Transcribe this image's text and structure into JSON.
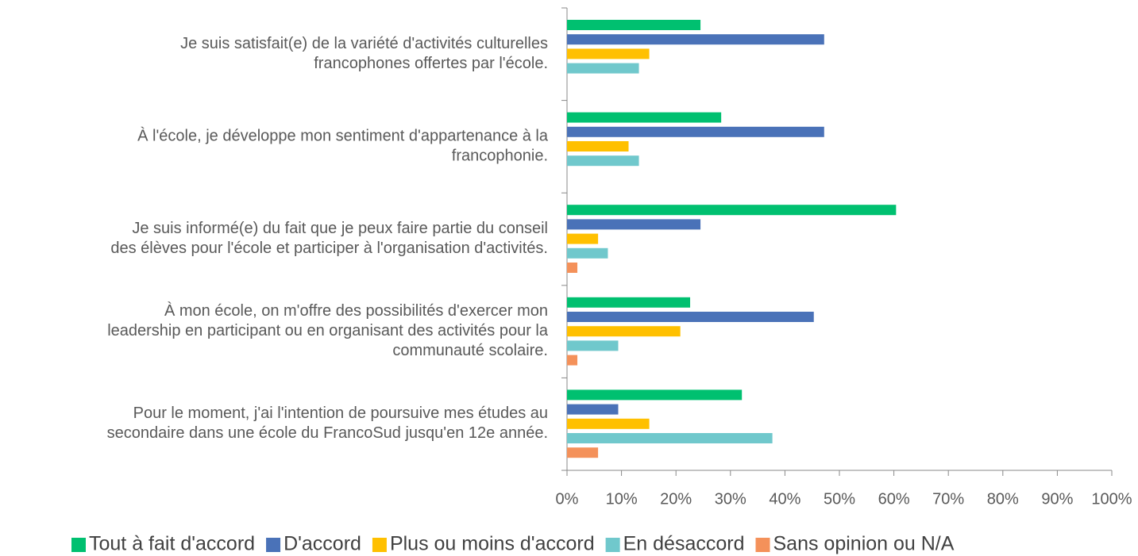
{
  "chart_data": {
    "type": "hbar",
    "categories": [
      "Je suis satisfait(e) de la variété d'activités culturelles\nfrancophones offertes par l'école.",
      "À l'école, je développe mon sentiment d'appartenance à la\nfrancophonie.",
      "Je suis informé(e) du fait que je peux faire partie du conseil\ndes élèves pour l'école et participer à l'organisation d'activités.",
      "À mon école, on m'offre des possibilités d'exercer mon\nleadership en participant ou en organisant des activités pour la\ncommunauté scolaire.",
      "Pour le moment, j'ai l'intention de poursuive mes études au\nsecondaire dans une école du FrancoSud jusqu'en 12e année."
    ],
    "series": [
      {
        "name": "Tout à fait d'accord",
        "color": "#00c070",
        "values": [
          24.5,
          28.3,
          60.4,
          22.6,
          32.1
        ]
      },
      {
        "name": "D'accord",
        "color": "#4a72b8",
        "values": [
          47.2,
          47.2,
          24.5,
          45.3,
          9.4
        ]
      },
      {
        "name": "Plus ou moins d'accord",
        "color": "#ffc000",
        "values": [
          15.1,
          11.3,
          5.7,
          20.8,
          15.1
        ]
      },
      {
        "name": "En désaccord",
        "color": "#70c8cc",
        "values": [
          13.2,
          13.2,
          7.5,
          9.4,
          37.7
        ]
      },
      {
        "name": "Sans opinion ou N/A",
        "color": "#f4915a",
        "values": [
          0,
          0,
          1.9,
          1.9,
          5.7
        ]
      }
    ],
    "xlim": [
      0,
      100
    ],
    "xticks": [
      {
        "value": 0,
        "label": "0%"
      },
      {
        "value": 10,
        "label": "10%"
      },
      {
        "value": 20,
        "label": "20%"
      },
      {
        "value": 30,
        "label": "30%"
      },
      {
        "value": 40,
        "label": "40%"
      },
      {
        "value": 50,
        "label": "50%"
      },
      {
        "value": 60,
        "label": "60%"
      },
      {
        "value": 70,
        "label": "70%"
      },
      {
        "value": 80,
        "label": "80%"
      },
      {
        "value": 90,
        "label": "90%"
      },
      {
        "value": 100,
        "label": "100%"
      }
    ],
    "legend": "bottom"
  }
}
